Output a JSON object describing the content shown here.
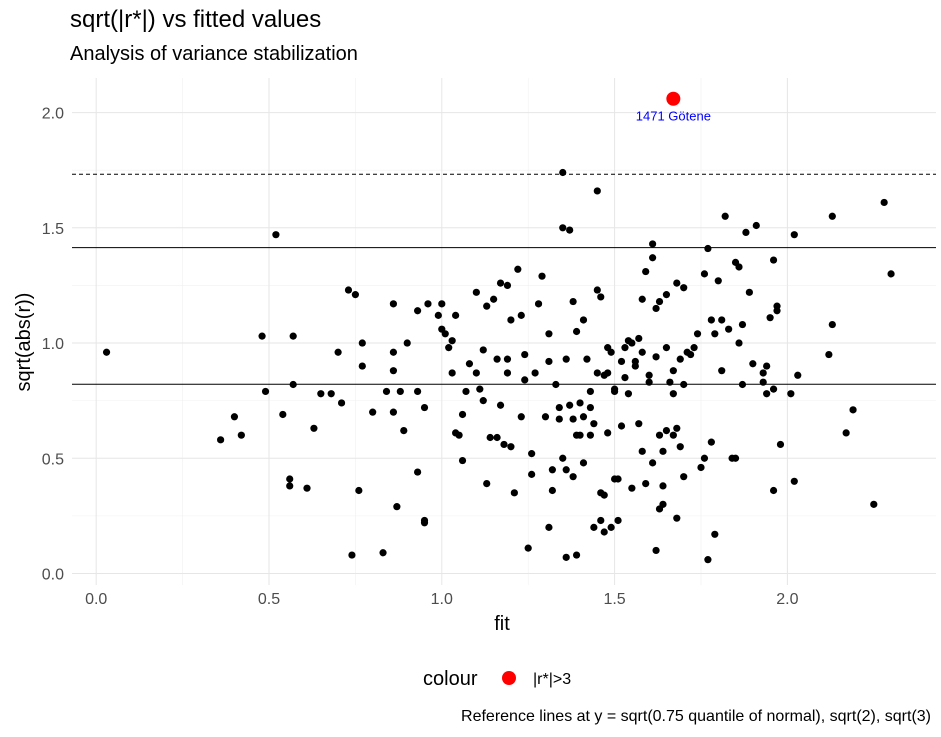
{
  "chart_data": {
    "type": "scatter",
    "title": "sqrt(|r*|) vs fitted values",
    "subtitle": "Analysis of variance stabilization",
    "xlabel": "fit",
    "ylabel": "sqrt(abs(r))",
    "caption": "Reference lines at y = sqrt(0.75 quantile of normal), sqrt(2), sqrt(3)",
    "xlim": [
      -0.07,
      2.43
    ],
    "ylim": [
      -0.05,
      2.15
    ],
    "x_ticks": [
      "0.0",
      "0.5",
      "1.0",
      "1.5",
      "2.0"
    ],
    "x_tick_values": [
      0,
      0.5,
      1,
      1.5,
      2
    ],
    "y_ticks": [
      "0.0",
      "0.5",
      "1.0",
      "1.5",
      "2.0"
    ],
    "y_tick_values": [
      0,
      0.5,
      1,
      1.5,
      2
    ],
    "grid": true,
    "legend_position": "bottom",
    "legend": {
      "title": "colour",
      "label": "|r*|>3",
      "color": "#ff0000"
    },
    "reference_lines": [
      {
        "y": 0.8212,
        "style": "solid"
      },
      {
        "y": 1.4142,
        "style": "solid"
      },
      {
        "y": 1.7321,
        "style": "dashed"
      }
    ],
    "outlier": {
      "x": 1.67,
      "y": 2.06,
      "label": "1471 Götene",
      "color": "#ff0000"
    },
    "point_color": "#000000",
    "points": [
      [
        0.03,
        0.96
      ],
      [
        0.36,
        0.58
      ],
      [
        0.4,
        0.68
      ],
      [
        0.42,
        0.6
      ],
      [
        0.48,
        1.03
      ],
      [
        0.49,
        0.79
      ],
      [
        0.52,
        1.47
      ],
      [
        0.54,
        0.69
      ],
      [
        0.56,
        0.41
      ],
      [
        0.56,
        0.38
      ],
      [
        0.57,
        1.03
      ],
      [
        0.57,
        0.82
      ],
      [
        0.61,
        0.37
      ],
      [
        0.63,
        0.63
      ],
      [
        0.65,
        0.78
      ],
      [
        0.68,
        0.78
      ],
      [
        0.7,
        0.96
      ],
      [
        0.71,
        0.74
      ],
      [
        0.73,
        1.23
      ],
      [
        0.74,
        0.08
      ],
      [
        0.75,
        1.21
      ],
      [
        0.76,
        0.36
      ],
      [
        0.77,
        1.0
      ],
      [
        0.77,
        0.9
      ],
      [
        0.8,
        0.7
      ],
      [
        0.83,
        0.09
      ],
      [
        0.84,
        0.79
      ],
      [
        0.86,
        1.17
      ],
      [
        0.86,
        0.96
      ],
      [
        0.86,
        0.88
      ],
      [
        0.86,
        0.7
      ],
      [
        0.87,
        0.29
      ],
      [
        0.88,
        0.79
      ],
      [
        0.89,
        0.62
      ],
      [
        0.9,
        1.0
      ],
      [
        0.93,
        0.79
      ],
      [
        0.93,
        1.14
      ],
      [
        0.93,
        0.44
      ],
      [
        0.95,
        0.22
      ],
      [
        0.95,
        0.23
      ],
      [
        0.95,
        0.72
      ],
      [
        0.96,
        1.17
      ],
      [
        0.99,
        1.12
      ],
      [
        1.0,
        1.17
      ],
      [
        1.0,
        1.06
      ],
      [
        1.01,
        1.04
      ],
      [
        1.02,
        0.98
      ],
      [
        1.03,
        1.01
      ],
      [
        1.03,
        0.87
      ],
      [
        1.04,
        1.12
      ],
      [
        1.04,
        0.61
      ],
      [
        1.05,
        0.6
      ],
      [
        1.06,
        0.69
      ],
      [
        1.06,
        0.49
      ],
      [
        1.07,
        0.79
      ],
      [
        1.08,
        0.91
      ],
      [
        1.1,
        1.22
      ],
      [
        1.1,
        0.87
      ],
      [
        1.11,
        0.8
      ],
      [
        1.12,
        0.97
      ],
      [
        1.12,
        0.75
      ],
      [
        1.13,
        0.39
      ],
      [
        1.13,
        1.16
      ],
      [
        1.14,
        0.59
      ],
      [
        1.15,
        1.19
      ],
      [
        1.16,
        0.93
      ],
      [
        1.16,
        0.59
      ],
      [
        1.17,
        1.26
      ],
      [
        1.17,
        0.73
      ],
      [
        1.18,
        0.56
      ],
      [
        1.19,
        1.25
      ],
      [
        1.19,
        0.87
      ],
      [
        1.19,
        0.93
      ],
      [
        1.2,
        1.1
      ],
      [
        1.2,
        0.55
      ],
      [
        1.21,
        0.35
      ],
      [
        1.22,
        1.32
      ],
      [
        1.23,
        1.12
      ],
      [
        1.23,
        0.68
      ],
      [
        1.24,
        0.95
      ],
      [
        1.24,
        0.84
      ],
      [
        1.25,
        0.11
      ],
      [
        1.26,
        0.52
      ],
      [
        1.26,
        0.43
      ],
      [
        1.27,
        0.87
      ],
      [
        1.28,
        1.17
      ],
      [
        1.29,
        1.29
      ],
      [
        1.3,
        0.68
      ],
      [
        1.31,
        1.04
      ],
      [
        1.31,
        0.92
      ],
      [
        1.31,
        0.2
      ],
      [
        1.32,
        0.45
      ],
      [
        1.32,
        0.36
      ],
      [
        1.33,
        0.82
      ],
      [
        1.34,
        0.72
      ],
      [
        1.34,
        0.67
      ],
      [
        1.35,
        1.5
      ],
      [
        1.35,
        1.74
      ],
      [
        1.35,
        0.5
      ],
      [
        1.36,
        0.93
      ],
      [
        1.36,
        0.45
      ],
      [
        1.36,
        0.07
      ],
      [
        1.37,
        1.49
      ],
      [
        1.37,
        0.73
      ],
      [
        1.38,
        1.18
      ],
      [
        1.38,
        0.67
      ],
      [
        1.38,
        0.42
      ],
      [
        1.39,
        1.05
      ],
      [
        1.39,
        0.6
      ],
      [
        1.39,
        0.08
      ],
      [
        1.4,
        0.74
      ],
      [
        1.4,
        0.6
      ],
      [
        1.41,
        1.1
      ],
      [
        1.41,
        0.68
      ],
      [
        1.41,
        0.48
      ],
      [
        1.42,
        0.93
      ],
      [
        1.43,
        0.6
      ],
      [
        1.43,
        0.72
      ],
      [
        1.43,
        0.79
      ],
      [
        1.44,
        0.65
      ],
      [
        1.44,
        0.2
      ],
      [
        1.45,
        1.23
      ],
      [
        1.45,
        0.87
      ],
      [
        1.45,
        1.66
      ],
      [
        1.46,
        1.2
      ],
      [
        1.46,
        0.35
      ],
      [
        1.46,
        0.23
      ],
      [
        1.47,
        0.86
      ],
      [
        1.47,
        0.34
      ],
      [
        1.47,
        0.18
      ],
      [
        1.48,
        0.98
      ],
      [
        1.48,
        0.87
      ],
      [
        1.48,
        0.61
      ],
      [
        1.49,
        0.96
      ],
      [
        1.49,
        0.2
      ],
      [
        1.5,
        0.79
      ],
      [
        1.5,
        0.41
      ],
      [
        1.5,
        0.8
      ],
      [
        1.51,
        0.41
      ],
      [
        1.51,
        0.23
      ],
      [
        1.52,
        0.92
      ],
      [
        1.52,
        0.64
      ],
      [
        1.53,
        0.98
      ],
      [
        1.53,
        0.85
      ],
      [
        1.54,
        1.01
      ],
      [
        1.54,
        0.78
      ],
      [
        1.55,
        1.0
      ],
      [
        1.55,
        0.37
      ],
      [
        1.56,
        0.92
      ],
      [
        1.56,
        0.9
      ],
      [
        1.57,
        1.02
      ],
      [
        1.57,
        0.65
      ],
      [
        1.58,
        1.19
      ],
      [
        1.58,
        0.96
      ],
      [
        1.58,
        0.53
      ],
      [
        1.59,
        1.31
      ],
      [
        1.59,
        0.39
      ],
      [
        1.6,
        0.83
      ],
      [
        1.6,
        0.86
      ],
      [
        1.61,
        1.43
      ],
      [
        1.61,
        1.37
      ],
      [
        1.61,
        0.48
      ],
      [
        1.62,
        1.15
      ],
      [
        1.62,
        0.94
      ],
      [
        1.62,
        0.1
      ],
      [
        1.63,
        1.18
      ],
      [
        1.63,
        0.6
      ],
      [
        1.63,
        0.28
      ],
      [
        1.64,
        0.53
      ],
      [
        1.64,
        0.3
      ],
      [
        1.64,
        0.38
      ],
      [
        1.65,
        1.21
      ],
      [
        1.65,
        0.98
      ],
      [
        1.65,
        0.62
      ],
      [
        1.66,
        0.83
      ],
      [
        1.67,
        0.88
      ],
      [
        1.67,
        0.78
      ],
      [
        1.67,
        0.6
      ],
      [
        1.68,
        1.26
      ],
      [
        1.68,
        0.63
      ],
      [
        1.68,
        0.24
      ],
      [
        1.69,
        0.93
      ],
      [
        1.69,
        0.55
      ],
      [
        1.7,
        1.24
      ],
      [
        1.7,
        0.42
      ],
      [
        1.7,
        0.82
      ],
      [
        1.71,
        0.96
      ],
      [
        1.72,
        0.95
      ],
      [
        1.73,
        0.98
      ],
      [
        1.74,
        1.04
      ],
      [
        1.75,
        0.46
      ],
      [
        1.76,
        1.3
      ],
      [
        1.76,
        0.5
      ],
      [
        1.77,
        1.41
      ],
      [
        1.77,
        0.06
      ],
      [
        1.78,
        1.1
      ],
      [
        1.78,
        0.57
      ],
      [
        1.79,
        1.04
      ],
      [
        1.79,
        0.17
      ],
      [
        1.8,
        1.27
      ],
      [
        1.81,
        1.1
      ],
      [
        1.81,
        0.88
      ],
      [
        1.82,
        1.55
      ],
      [
        1.83,
        1.06
      ],
      [
        1.84,
        0.5
      ],
      [
        1.85,
        1.35
      ],
      [
        1.85,
        0.5
      ],
      [
        1.86,
        1.33
      ],
      [
        1.86,
        1.0
      ],
      [
        1.87,
        1.08
      ],
      [
        1.87,
        0.82
      ],
      [
        1.88,
        1.48
      ],
      [
        1.89,
        1.22
      ],
      [
        1.9,
        0.91
      ],
      [
        1.91,
        1.51
      ],
      [
        1.93,
        0.87
      ],
      [
        1.93,
        0.83
      ],
      [
        1.94,
        0.9
      ],
      [
        1.94,
        0.78
      ],
      [
        1.95,
        1.11
      ],
      [
        1.96,
        1.36
      ],
      [
        1.96,
        0.8
      ],
      [
        1.96,
        0.36
      ],
      [
        1.97,
        1.16
      ],
      [
        1.97,
        1.14
      ],
      [
        1.98,
        0.56
      ],
      [
        2.01,
        0.78
      ],
      [
        2.02,
        1.47
      ],
      [
        2.02,
        0.4
      ],
      [
        2.03,
        0.86
      ],
      [
        2.12,
        0.95
      ],
      [
        2.13,
        1.55
      ],
      [
        2.13,
        1.08
      ],
      [
        2.17,
        0.61
      ],
      [
        2.19,
        0.71
      ],
      [
        2.25,
        0.3
      ],
      [
        2.28,
        1.61
      ],
      [
        2.3,
        1.3
      ]
    ]
  }
}
